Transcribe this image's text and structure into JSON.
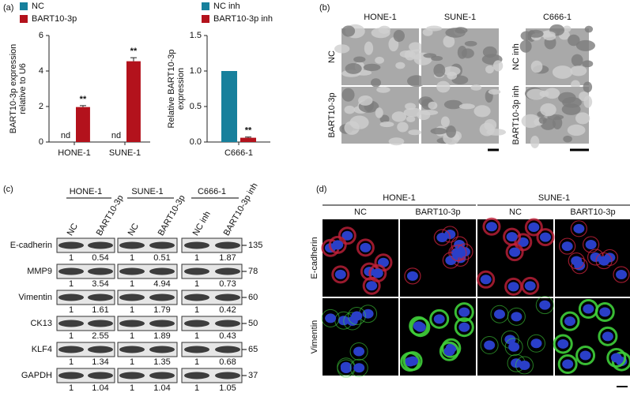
{
  "chart_data": [
    {
      "type": "bar",
      "panel_label": "(a)",
      "categories": [
        "HONE-1",
        "SUNE-1"
      ],
      "series": [
        {
          "name": "NC",
          "color": "#17809c",
          "values": [
            null,
            null
          ],
          "value_labels": [
            "nd",
            "nd"
          ]
        },
        {
          "name": "BART10-3p",
          "color": "#b3121c",
          "values": [
            1.97,
            4.55
          ],
          "errors": [
            0.08,
            0.2
          ],
          "significance": [
            "**",
            "**"
          ]
        }
      ],
      "y_label": [
        "BART10-3p expression",
        "relative to U6"
      ],
      "ylim": [
        0,
        6
      ],
      "yticks": [
        0,
        2,
        4,
        6
      ]
    },
    {
      "type": "bar",
      "categories": [
        "C666-1"
      ],
      "series": [
        {
          "name": "NC inh",
          "color": "#17809c",
          "values": [
            1.0
          ]
        },
        {
          "name": "BART10-3p inh",
          "color": "#b3121c",
          "values": [
            0.06
          ],
          "errors": [
            0.01
          ],
          "significance": [
            "**"
          ]
        }
      ],
      "y_label": [
        "Relative BART10-3p",
        "expression"
      ],
      "ylim": [
        0,
        1.5
      ],
      "yticks": [
        {
          "value": 0,
          "label": "0.0"
        },
        0.5,
        {
          "value": 1,
          "label": "1.0"
        },
        1.5
      ]
    }
  ],
  "microscopy": {
    "panel_label": "(b)",
    "groups": [
      {
        "columns": [
          "HONE-1",
          "SUNE-1"
        ],
        "rows": [
          "NC",
          "BART10-3p"
        ]
      },
      {
        "columns": [
          "C666-1"
        ],
        "rows": [
          "NC inh",
          "BART10-3p inh"
        ]
      }
    ]
  },
  "western_blot": {
    "panel_label": "(c)",
    "groups": [
      "HONE-1",
      "SUNE-1",
      "C666-1"
    ],
    "lanes": [
      "NC",
      "BART10-3p",
      "NC",
      "BART10-3p",
      "NC inh",
      "BART10-3p inh"
    ],
    "rows": [
      {
        "protein": "E-cadherin",
        "kda": 135,
        "values": [
          1,
          0.54,
          1,
          0.51,
          1,
          1.87
        ]
      },
      {
        "protein": "MMP9",
        "kda": 78,
        "values": [
          1,
          3.54,
          1,
          4.94,
          1,
          0.73
        ]
      },
      {
        "protein": "Vimentin",
        "kda": 60,
        "values": [
          1,
          1.61,
          1,
          1.79,
          1,
          0.42
        ]
      },
      {
        "protein": "CK13",
        "kda": 50,
        "values": [
          1,
          2.55,
          1,
          1.89,
          1,
          0.43
        ]
      },
      {
        "protein": "KLF4",
        "kda": 65,
        "values": [
          1,
          1.34,
          1,
          1.35,
          1,
          0.68
        ]
      },
      {
        "protein": "GAPDH",
        "kda": 37,
        "values": [
          1,
          1.04,
          1,
          1.04,
          1,
          1.05
        ]
      }
    ]
  },
  "immunofluorescence": {
    "panel_label": "(d)",
    "groups": [
      "HONE-1",
      "SUNE-1"
    ],
    "columns": [
      "NC",
      "BART10-3p",
      "NC",
      "BART10-3p"
    ],
    "rows": [
      "E-cadherin",
      "Vimentin"
    ]
  }
}
